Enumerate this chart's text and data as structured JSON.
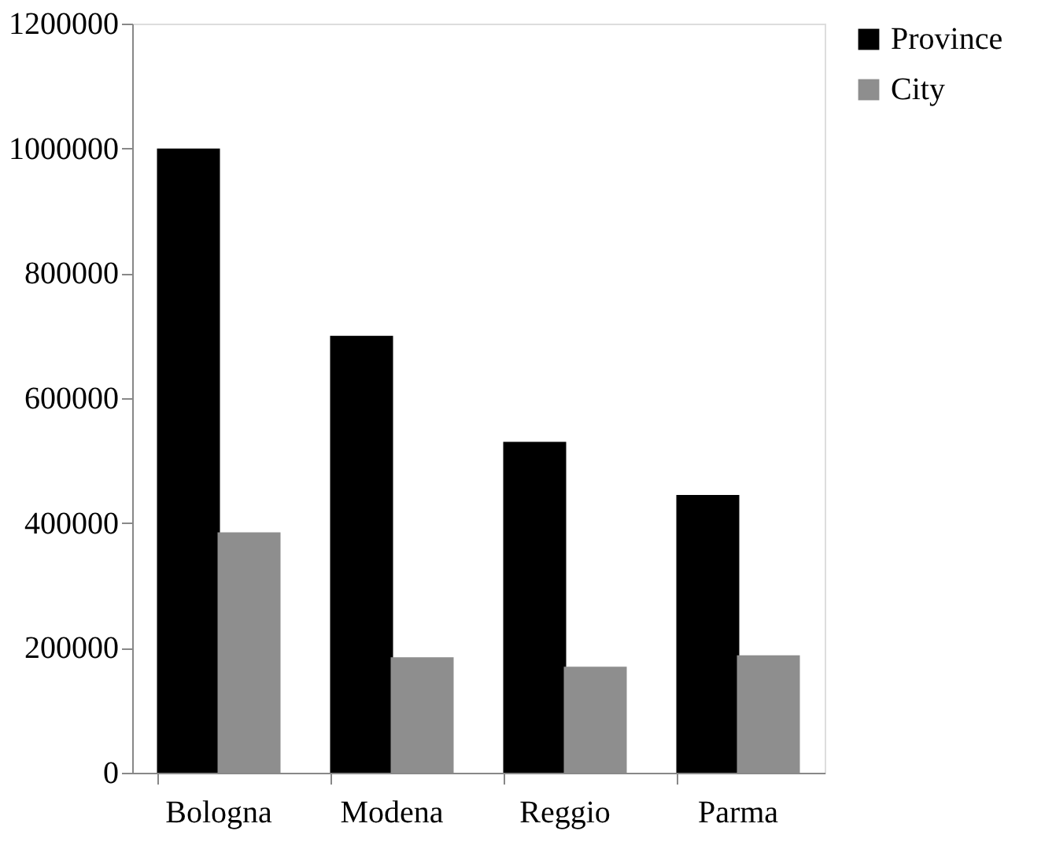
{
  "chart_data": {
    "type": "bar",
    "categories": [
      "Bologna",
      "Modena",
      "Reggio",
      "Parma"
    ],
    "series": [
      {
        "name": "Province",
        "color": "#000000",
        "values": [
          1000000,
          700000,
          530000,
          445000
        ]
      },
      {
        "name": "City",
        "color": "#8e8e8e",
        "values": [
          385000,
          185000,
          170000,
          188000
        ]
      }
    ],
    "ylim": [
      0,
      1200000
    ],
    "yticks": [
      0,
      200000,
      400000,
      600000,
      800000,
      1000000,
      1200000
    ],
    "grid": false,
    "legend": "right"
  }
}
